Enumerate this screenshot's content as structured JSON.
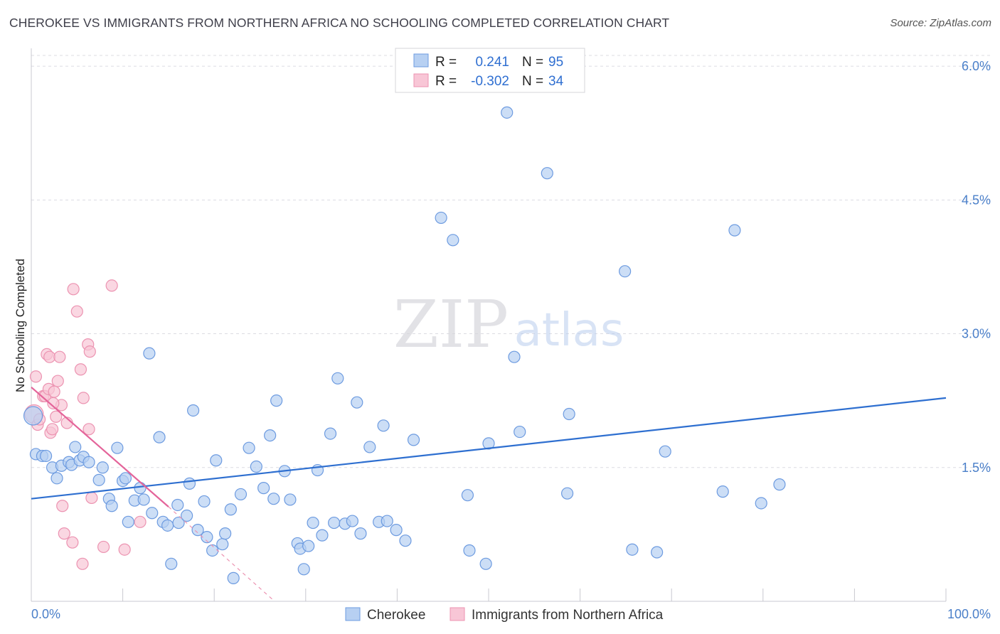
{
  "title": "CHEROKEE VS IMMIGRANTS FROM NORTHERN AFRICA NO SCHOOLING COMPLETED CORRELATION CHART",
  "source": "Source: ZipAtlas.com",
  "watermark": {
    "zip": "ZIP",
    "atlas": "atlas"
  },
  "colors": {
    "blue_fill": "#b7d0f2",
    "blue_stroke": "#6d9be0",
    "blue_line": "#2e6fd0",
    "pink_fill": "#f8c6d6",
    "pink_stroke": "#ec93b1",
    "pink_line": "#e4649a",
    "grid": "#dcdce2",
    "tick_text": "#4a7fc9"
  },
  "legend": {
    "rows": [
      {
        "r_label": "R =",
        "r_value": "0.241",
        "n_label": "N =",
        "n_value": "95",
        "series": "blue"
      },
      {
        "r_label": "R =",
        "r_value": "-0.302",
        "n_label": "N =",
        "n_value": "34",
        "series": "pink"
      }
    ]
  },
  "chart_data": {
    "type": "scatter",
    "title": "CHEROKEE VS IMMIGRANTS FROM NORTHERN AFRICA NO SCHOOLING COMPLETED CORRELATION CHART",
    "xlabel": "",
    "ylabel": "No Schooling Completed",
    "xlim": [
      0,
      100
    ],
    "ylim": [
      0,
      6.2
    ],
    "x_tick_labels": [
      "0.0%",
      "100.0%"
    ],
    "y_ticks": [
      1.5,
      3.0,
      4.5,
      6.0
    ],
    "y_tick_labels": [
      "1.5%",
      "3.0%",
      "4.5%",
      "6.0%"
    ],
    "legend_placement": "top-center",
    "series": [
      {
        "name": "Cherokee",
        "color": "blue",
        "r": 0.241,
        "n": 95,
        "trend": {
          "x0": 0,
          "y0": 1.15,
          "x1": 100,
          "y1": 2.28
        },
        "points": [
          {
            "x": 0.2,
            "y": 2.08,
            "big": true
          },
          {
            "x": 0.5,
            "y": 1.65
          },
          {
            "x": 1.2,
            "y": 1.63
          },
          {
            "x": 1.6,
            "y": 1.63
          },
          {
            "x": 2.3,
            "y": 1.5
          },
          {
            "x": 2.8,
            "y": 1.38
          },
          {
            "x": 3.3,
            "y": 1.52
          },
          {
            "x": 4.1,
            "y": 1.56
          },
          {
            "x": 4.4,
            "y": 1.53
          },
          {
            "x": 4.8,
            "y": 1.73
          },
          {
            "x": 5.3,
            "y": 1.58
          },
          {
            "x": 5.7,
            "y": 1.62
          },
          {
            "x": 6.3,
            "y": 1.56
          },
          {
            "x": 7.4,
            "y": 1.36
          },
          {
            "x": 7.8,
            "y": 1.5
          },
          {
            "x": 8.5,
            "y": 1.15
          },
          {
            "x": 8.8,
            "y": 1.07
          },
          {
            "x": 9.4,
            "y": 1.72
          },
          {
            "x": 10.0,
            "y": 1.35
          },
          {
            "x": 10.3,
            "y": 1.38
          },
          {
            "x": 10.6,
            "y": 0.89
          },
          {
            "x": 11.3,
            "y": 1.13
          },
          {
            "x": 11.9,
            "y": 1.27
          },
          {
            "x": 12.3,
            "y": 1.14
          },
          {
            "x": 12.9,
            "y": 2.78
          },
          {
            "x": 13.2,
            "y": 0.99
          },
          {
            "x": 14.0,
            "y": 1.84
          },
          {
            "x": 14.4,
            "y": 0.89
          },
          {
            "x": 14.9,
            "y": 0.85
          },
          {
            "x": 15.3,
            "y": 0.42
          },
          {
            "x": 16.1,
            "y": 0.88
          },
          {
            "x": 16.0,
            "y": 1.08
          },
          {
            "x": 17.0,
            "y": 0.96
          },
          {
            "x": 17.3,
            "y": 1.32
          },
          {
            "x": 17.7,
            "y": 2.14
          },
          {
            "x": 18.2,
            "y": 0.8
          },
          {
            "x": 18.9,
            "y": 1.12
          },
          {
            "x": 19.2,
            "y": 0.72
          },
          {
            "x": 19.8,
            "y": 0.57
          },
          {
            "x": 20.2,
            "y": 1.58
          },
          {
            "x": 20.9,
            "y": 0.64
          },
          {
            "x": 21.2,
            "y": 0.76
          },
          {
            "x": 21.8,
            "y": 1.03
          },
          {
            "x": 22.1,
            "y": 0.26
          },
          {
            "x": 22.9,
            "y": 1.2
          },
          {
            "x": 23.8,
            "y": 1.72
          },
          {
            "x": 24.6,
            "y": 1.51
          },
          {
            "x": 25.4,
            "y": 1.27
          },
          {
            "x": 26.1,
            "y": 1.86
          },
          {
            "x": 26.5,
            "y": 1.15
          },
          {
            "x": 26.8,
            "y": 2.25
          },
          {
            "x": 27.7,
            "y": 1.46
          },
          {
            "x": 28.3,
            "y": 1.14
          },
          {
            "x": 29.1,
            "y": 0.65
          },
          {
            "x": 29.4,
            "y": 0.59
          },
          {
            "x": 29.8,
            "y": 0.36
          },
          {
            "x": 30.3,
            "y": 0.62
          },
          {
            "x": 30.8,
            "y": 0.88
          },
          {
            "x": 31.3,
            "y": 1.47
          },
          {
            "x": 31.8,
            "y": 0.74
          },
          {
            "x": 32.7,
            "y": 1.88
          },
          {
            "x": 33.1,
            "y": 0.88
          },
          {
            "x": 33.5,
            "y": 2.5
          },
          {
            "x": 34.3,
            "y": 0.87
          },
          {
            "x": 35.1,
            "y": 0.9
          },
          {
            "x": 35.6,
            "y": 2.23
          },
          {
            "x": 36.0,
            "y": 0.76
          },
          {
            "x": 37.0,
            "y": 1.73
          },
          {
            "x": 38.0,
            "y": 0.89
          },
          {
            "x": 38.5,
            "y": 1.97
          },
          {
            "x": 38.9,
            "y": 0.9
          },
          {
            "x": 39.9,
            "y": 0.8
          },
          {
            "x": 40.9,
            "y": 0.68
          },
          {
            "x": 41.8,
            "y": 1.81
          },
          {
            "x": 44.8,
            "y": 4.3
          },
          {
            "x": 46.1,
            "y": 4.05
          },
          {
            "x": 47.7,
            "y": 1.19
          },
          {
            "x": 47.9,
            "y": 0.57
          },
          {
            "x": 49.7,
            "y": 0.42
          },
          {
            "x": 50.0,
            "y": 1.77
          },
          {
            "x": 52.0,
            "y": 5.48
          },
          {
            "x": 52.8,
            "y": 2.74
          },
          {
            "x": 53.4,
            "y": 1.9
          },
          {
            "x": 56.4,
            "y": 4.8
          },
          {
            "x": 58.6,
            "y": 1.21
          },
          {
            "x": 58.8,
            "y": 2.1
          },
          {
            "x": 64.9,
            "y": 3.7
          },
          {
            "x": 65.7,
            "y": 0.58
          },
          {
            "x": 68.4,
            "y": 0.55
          },
          {
            "x": 69.3,
            "y": 1.68
          },
          {
            "x": 75.6,
            "y": 1.23
          },
          {
            "x": 76.9,
            "y": 4.16
          },
          {
            "x": 79.8,
            "y": 1.1
          },
          {
            "x": 81.8,
            "y": 1.31
          }
        ]
      },
      {
        "name": "Immigrants from Northern Africa",
        "color": "pink",
        "r": -0.302,
        "n": 34,
        "trend": {
          "x0": 0,
          "y0": 2.4,
          "x1": 15.0,
          "y1": 1.06,
          "dash_x1": 26.6,
          "dash_y1": 0.0
        },
        "points": [
          {
            "x": 0.3,
            "y": 2.1,
            "big": true
          },
          {
            "x": 0.5,
            "y": 2.52
          },
          {
            "x": 0.7,
            "y": 1.98
          },
          {
            "x": 0.9,
            "y": 2.04
          },
          {
            "x": 1.3,
            "y": 2.3
          },
          {
            "x": 1.5,
            "y": 2.3
          },
          {
            "x": 1.7,
            "y": 2.77
          },
          {
            "x": 1.9,
            "y": 2.38
          },
          {
            "x": 2.0,
            "y": 2.74
          },
          {
            "x": 2.1,
            "y": 1.89
          },
          {
            "x": 2.3,
            "y": 1.93
          },
          {
            "x": 2.5,
            "y": 2.35
          },
          {
            "x": 2.7,
            "y": 2.07
          },
          {
            "x": 2.9,
            "y": 2.47
          },
          {
            "x": 3.1,
            "y": 2.74
          },
          {
            "x": 3.3,
            "y": 2.2
          },
          {
            "x": 3.4,
            "y": 1.07
          },
          {
            "x": 3.6,
            "y": 0.76
          },
          {
            "x": 3.9,
            "y": 2.0
          },
          {
            "x": 4.5,
            "y": 0.66
          },
          {
            "x": 4.6,
            "y": 3.5
          },
          {
            "x": 5.0,
            "y": 3.25
          },
          {
            "x": 5.4,
            "y": 2.6
          },
          {
            "x": 5.6,
            "y": 0.42
          },
          {
            "x": 5.7,
            "y": 2.28
          },
          {
            "x": 6.2,
            "y": 2.88
          },
          {
            "x": 6.4,
            "y": 2.8
          },
          {
            "x": 6.3,
            "y": 1.93
          },
          {
            "x": 6.6,
            "y": 1.16
          },
          {
            "x": 7.9,
            "y": 0.61
          },
          {
            "x": 8.8,
            "y": 3.54
          },
          {
            "x": 10.2,
            "y": 0.58
          },
          {
            "x": 11.9,
            "y": 0.89
          },
          {
            "x": 2.4,
            "y": 2.22
          }
        ]
      }
    ]
  },
  "bottom_legend": [
    {
      "label": "Cherokee",
      "series": "blue"
    },
    {
      "label": "Immigrants from Northern Africa",
      "series": "pink"
    }
  ]
}
